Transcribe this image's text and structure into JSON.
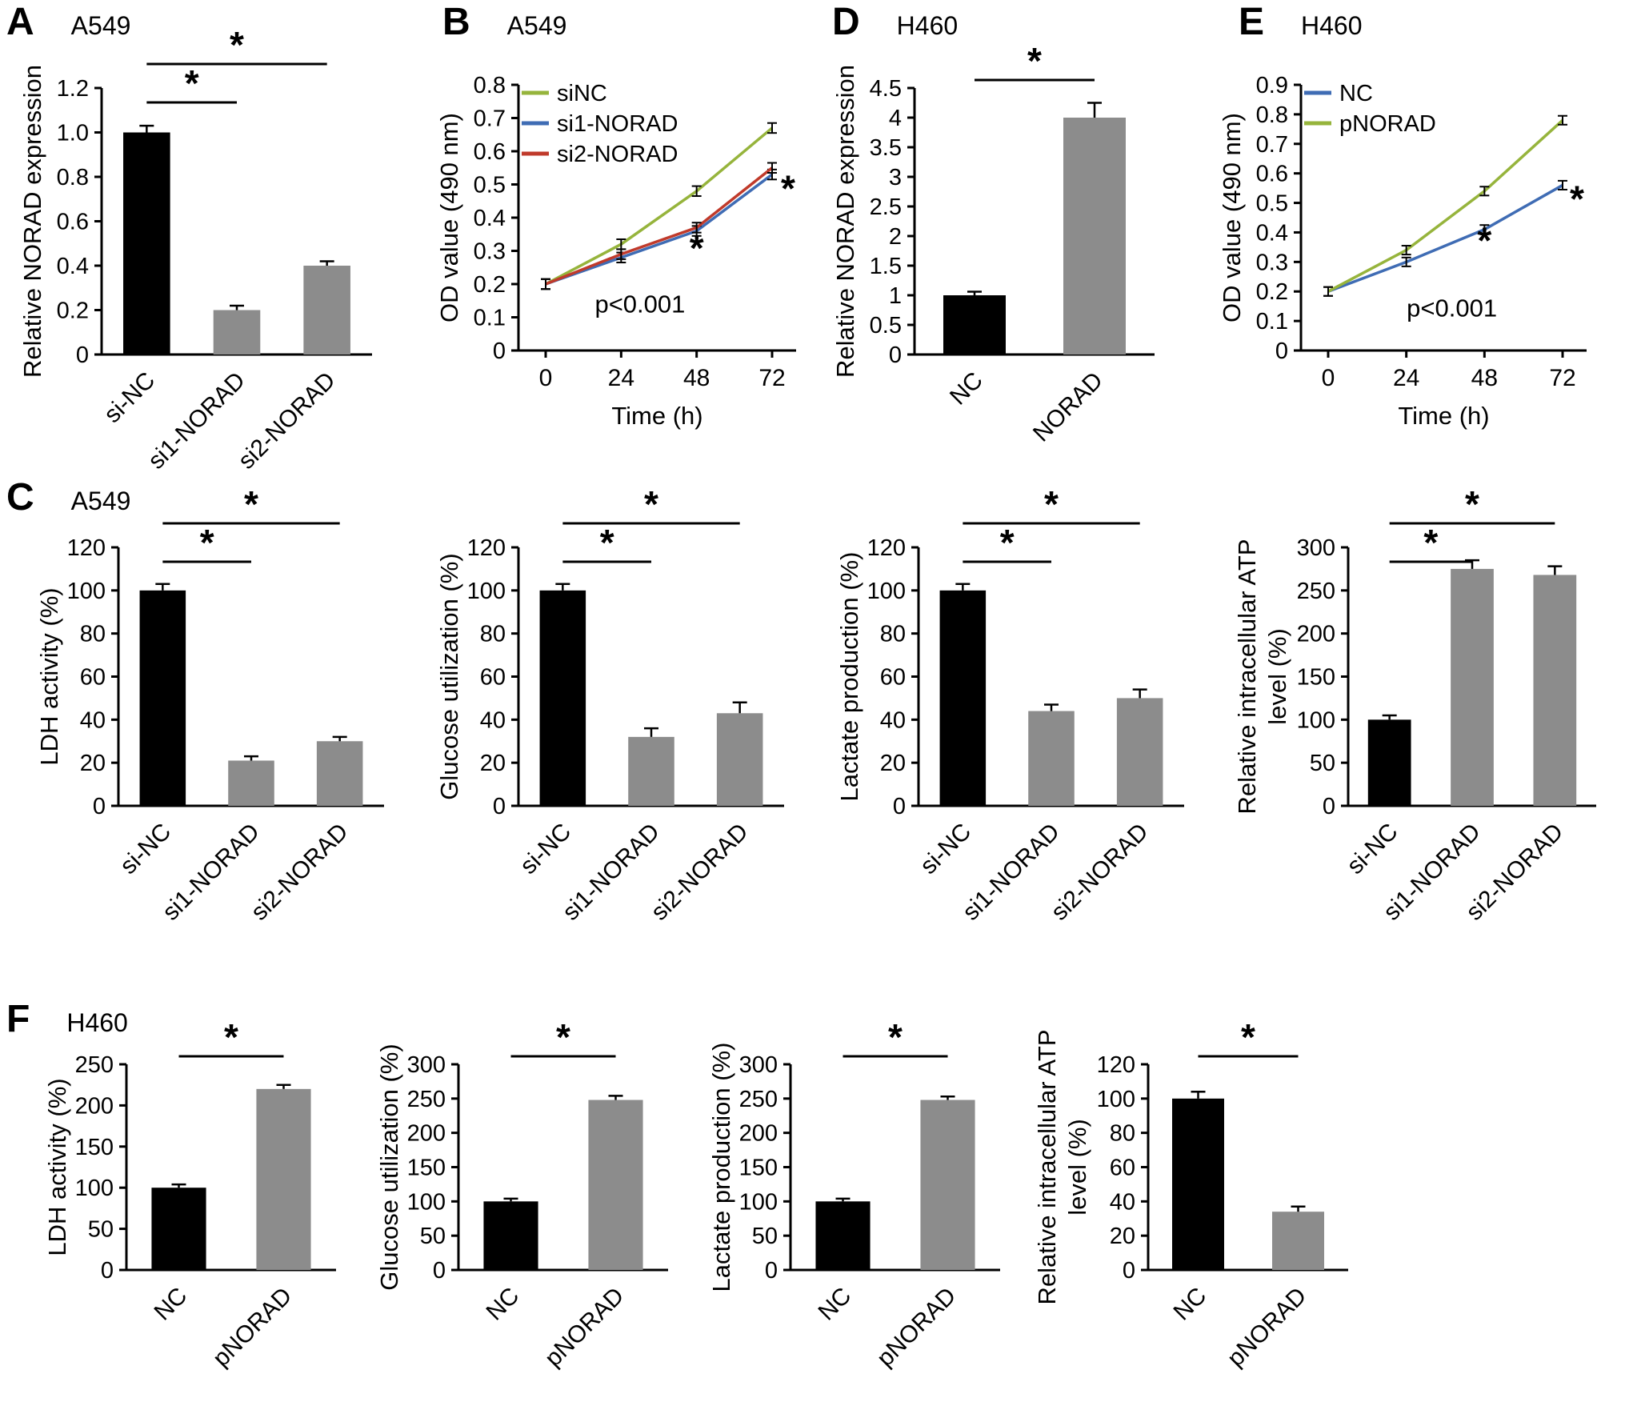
{
  "figure": {
    "headers": {
      "A": {
        "letter": "A",
        "title": "A549"
      },
      "B": {
        "letter": "B",
        "title": "A549"
      },
      "C": {
        "letter": "C",
        "title": "A549"
      },
      "D": {
        "letter": "D",
        "title": "H460"
      },
      "E": {
        "letter": "E",
        "title": "H460"
      },
      "F": {
        "letter": "F",
        "title": "H460"
      }
    },
    "colors": {
      "control_bar": "#000000",
      "treatment_bar": "#8c8c8c",
      "line_green": "#96b43c",
      "line_blue": "#3f6cb4",
      "line_red": "#c03a2b"
    }
  },
  "chart_data": [
    {
      "id": "A",
      "type": "bar",
      "panel": "A",
      "title": "A549",
      "ylabel": [
        "Relative NORAD expression"
      ],
      "categories": [
        "si-NC",
        "si1-NORAD",
        "si2-NORAD"
      ],
      "values": [
        1.0,
        0.2,
        0.4
      ],
      "errors": [
        0.03,
        0.02,
        0.02
      ],
      "colors": [
        "#000000",
        "#8c8c8c",
        "#8c8c8c"
      ],
      "ylim": [
        0,
        1.2
      ],
      "yticks": [
        0,
        0.2,
        0.4,
        0.6,
        0.8,
        1.0,
        1.2
      ],
      "ytick_labels": [
        "0",
        "0.2",
        "0.4",
        "0.6",
        "0.8",
        "1.0",
        "1.2"
      ],
      "brackets": [
        {
          "from": 0,
          "to": 1,
          "label": "*"
        },
        {
          "from": 0,
          "to": 2,
          "label": "*"
        }
      ]
    },
    {
      "id": "B",
      "type": "line",
      "panel": "B",
      "title": "A549",
      "ylabel": [
        "OD value (490 nm)"
      ],
      "xlabel": "Time (h)",
      "x": [
        0,
        24,
        48,
        72
      ],
      "series": [
        {
          "name": "siNC",
          "color": "#96b43c",
          "values": [
            0.2,
            0.32,
            0.48,
            0.67
          ]
        },
        {
          "name": "si1-NORAD",
          "color": "#3f6cb4",
          "values": [
            0.2,
            0.28,
            0.36,
            0.53
          ]
        },
        {
          "name": "si2-NORAD",
          "color": "#c03a2b",
          "values": [
            0.2,
            0.29,
            0.37,
            0.55
          ]
        }
      ],
      "point_error": 0.015,
      "ylim": [
        0,
        0.8
      ],
      "yticks": [
        0,
        0.1,
        0.2,
        0.3,
        0.4,
        0.5,
        0.6,
        0.7,
        0.8
      ],
      "ytick_labels": [
        "0",
        "0.1",
        "0.2",
        "0.3",
        "0.4",
        "0.5",
        "0.6",
        "0.7",
        "0.8"
      ],
      "annotation": {
        "text": "p<0.001",
        "x": 30,
        "y": 0.115
      },
      "asterisks": [
        {
          "x": 48,
          "y": 0.27
        },
        {
          "x": 72,
          "y": 0.45,
          "dx": 20
        }
      ]
    },
    {
      "id": "D",
      "type": "bar",
      "panel": "D",
      "title": "H460",
      "ylabel": [
        "Relative NORAD expression"
      ],
      "categories": [
        "NC",
        "NORAD"
      ],
      "values": [
        1.0,
        4.0
      ],
      "errors": [
        0.06,
        0.25
      ],
      "colors": [
        "#000000",
        "#8c8c8c"
      ],
      "ylim": [
        0,
        4.5
      ],
      "yticks": [
        0,
        0.5,
        1,
        1.5,
        2,
        2.5,
        3,
        3.5,
        4,
        4.5
      ],
      "ytick_labels": [
        "0",
        "0.5",
        "1",
        "1.5",
        "2",
        "2.5",
        "3",
        "3.5",
        "4",
        "4.5"
      ],
      "brackets": [
        {
          "from": 0,
          "to": 1,
          "label": "*"
        }
      ]
    },
    {
      "id": "E",
      "type": "line",
      "panel": "E",
      "title": "H460",
      "ylabel": [
        "OD value (490 nm)"
      ],
      "xlabel": "Time (h)",
      "x": [
        0,
        24,
        48,
        72
      ],
      "series": [
        {
          "name": "NC",
          "color": "#3f6cb4",
          "values": [
            0.2,
            0.3,
            0.41,
            0.56
          ]
        },
        {
          "name": "pNORAD",
          "color": "#96b43c",
          "values": [
            0.2,
            0.34,
            0.54,
            0.78
          ]
        }
      ],
      "point_error": 0.015,
      "ylim": [
        0,
        0.9
      ],
      "yticks": [
        0,
        0.1,
        0.2,
        0.3,
        0.4,
        0.5,
        0.6,
        0.7,
        0.8,
        0.9
      ],
      "ytick_labels": [
        "0",
        "0.1",
        "0.2",
        "0.3",
        "0.4",
        "0.5",
        "0.6",
        "0.7",
        "0.8",
        "0.9"
      ],
      "annotation": {
        "text": "p<0.001",
        "x": 38,
        "y": 0.115
      },
      "asterisks": [
        {
          "x": 48,
          "y": 0.33
        },
        {
          "x": 72,
          "y": 0.47,
          "dx": 18
        }
      ]
    },
    {
      "id": "C1",
      "type": "bar",
      "panel": "C",
      "title": "A549",
      "ylabel": [
        "LDH activity (%)"
      ],
      "categories": [
        "si-NC",
        "si1-NORAD",
        "si2-NORAD"
      ],
      "values": [
        100,
        21,
        30
      ],
      "errors": [
        3,
        2,
        2
      ],
      "colors": [
        "#000000",
        "#8c8c8c",
        "#8c8c8c"
      ],
      "ylim": [
        0,
        120
      ],
      "yticks": [
        0,
        20,
        40,
        60,
        80,
        100,
        120
      ],
      "ytick_labels": [
        "0",
        "20",
        "40",
        "60",
        "80",
        "100",
        "120"
      ],
      "brackets": [
        {
          "from": 0,
          "to": 1,
          "label": "*"
        },
        {
          "from": 0,
          "to": 2,
          "label": "*"
        }
      ]
    },
    {
      "id": "C2",
      "type": "bar",
      "panel": "C",
      "ylabel": [
        "Glucose utilization (%)"
      ],
      "categories": [
        "si-NC",
        "si1-NORAD",
        "si2-NORAD"
      ],
      "values": [
        100,
        32,
        43
      ],
      "errors": [
        3,
        4,
        5
      ],
      "colors": [
        "#000000",
        "#8c8c8c",
        "#8c8c8c"
      ],
      "ylim": [
        0,
        120
      ],
      "yticks": [
        0,
        20,
        40,
        60,
        80,
        100,
        120
      ],
      "ytick_labels": [
        "0",
        "20",
        "40",
        "60",
        "80",
        "100",
        "120"
      ],
      "brackets": [
        {
          "from": 0,
          "to": 1,
          "label": "*"
        },
        {
          "from": 0,
          "to": 2,
          "label": "*"
        }
      ]
    },
    {
      "id": "C3",
      "type": "bar",
      "panel": "C",
      "ylabel": [
        "Lactate production (%)"
      ],
      "categories": [
        "si-NC",
        "si1-NORAD",
        "si2-NORAD"
      ],
      "values": [
        100,
        44,
        50
      ],
      "errors": [
        3,
        3,
        4
      ],
      "colors": [
        "#000000",
        "#8c8c8c",
        "#8c8c8c"
      ],
      "ylim": [
        0,
        120
      ],
      "yticks": [
        0,
        20,
        40,
        60,
        80,
        100,
        120
      ],
      "ytick_labels": [
        "0",
        "20",
        "40",
        "60",
        "80",
        "100",
        "120"
      ],
      "brackets": [
        {
          "from": 0,
          "to": 1,
          "label": "*"
        },
        {
          "from": 0,
          "to": 2,
          "label": "*"
        }
      ]
    },
    {
      "id": "C4",
      "type": "bar",
      "panel": "C",
      "ylabel": [
        "Relative intracellular ATP",
        "level (%)"
      ],
      "categories": [
        "si-NC",
        "si1-NORAD",
        "si2-NORAD"
      ],
      "values": [
        100,
        275,
        268
      ],
      "errors": [
        5,
        10,
        10
      ],
      "colors": [
        "#000000",
        "#8c8c8c",
        "#8c8c8c"
      ],
      "ylim": [
        0,
        300
      ],
      "yticks": [
        0,
        50,
        100,
        150,
        200,
        250,
        300
      ],
      "ytick_labels": [
        "0",
        "50",
        "100",
        "150",
        "200",
        "250",
        "300"
      ],
      "brackets": [
        {
          "from": 0,
          "to": 1,
          "label": "*"
        },
        {
          "from": 0,
          "to": 2,
          "label": "*"
        }
      ]
    },
    {
      "id": "F1",
      "type": "bar",
      "panel": "F",
      "title": "H460",
      "ylabel": [
        "LDH activity (%)"
      ],
      "categories": [
        "NC",
        "pNORAD"
      ],
      "values": [
        100,
        220
      ],
      "errors": [
        4,
        5
      ],
      "colors": [
        "#000000",
        "#8c8c8c"
      ],
      "ylim": [
        0,
        250
      ],
      "yticks": [
        0,
        50,
        100,
        150,
        200,
        250
      ],
      "ytick_labels": [
        "0",
        "50",
        "100",
        "150",
        "200",
        "250"
      ],
      "brackets": [
        {
          "from": 0,
          "to": 1,
          "label": "*"
        }
      ]
    },
    {
      "id": "F2",
      "type": "bar",
      "panel": "F",
      "ylabel": [
        "Glucose utilization (%)"
      ],
      "categories": [
        "NC",
        "pNORAD"
      ],
      "values": [
        100,
        248
      ],
      "errors": [
        4,
        6
      ],
      "colors": [
        "#000000",
        "#8c8c8c"
      ],
      "ylim": [
        0,
        300
      ],
      "yticks": [
        0,
        50,
        100,
        150,
        200,
        250,
        300
      ],
      "ytick_labels": [
        "0",
        "50",
        "100",
        "150",
        "200",
        "250",
        "300"
      ],
      "brackets": [
        {
          "from": 0,
          "to": 1,
          "label": "*"
        }
      ]
    },
    {
      "id": "F3",
      "type": "bar",
      "panel": "F",
      "ylabel": [
        "Lactate production (%)"
      ],
      "categories": [
        "NC",
        "pNORAD"
      ],
      "values": [
        100,
        248
      ],
      "errors": [
        4,
        5
      ],
      "colors": [
        "#000000",
        "#8c8c8c"
      ],
      "ylim": [
        0,
        300
      ],
      "yticks": [
        0,
        50,
        100,
        150,
        200,
        250,
        300
      ],
      "ytick_labels": [
        "0",
        "50",
        "100",
        "150",
        "200",
        "250",
        "300"
      ],
      "brackets": [
        {
          "from": 0,
          "to": 1,
          "label": "*"
        }
      ]
    },
    {
      "id": "F4",
      "type": "bar",
      "panel": "F",
      "ylabel": [
        "Relative intracellular ATP",
        "level (%)"
      ],
      "categories": [
        "NC",
        "pNORAD"
      ],
      "values": [
        100,
        34
      ],
      "errors": [
        4,
        3
      ],
      "colors": [
        "#000000",
        "#8c8c8c"
      ],
      "ylim": [
        0,
        120
      ],
      "yticks": [
        0,
        20,
        40,
        60,
        80,
        100,
        120
      ],
      "ytick_labels": [
        "0",
        "20",
        "40",
        "60",
        "80",
        "100",
        "120"
      ],
      "brackets": [
        {
          "from": 0,
          "to": 1,
          "label": "*"
        }
      ]
    }
  ]
}
